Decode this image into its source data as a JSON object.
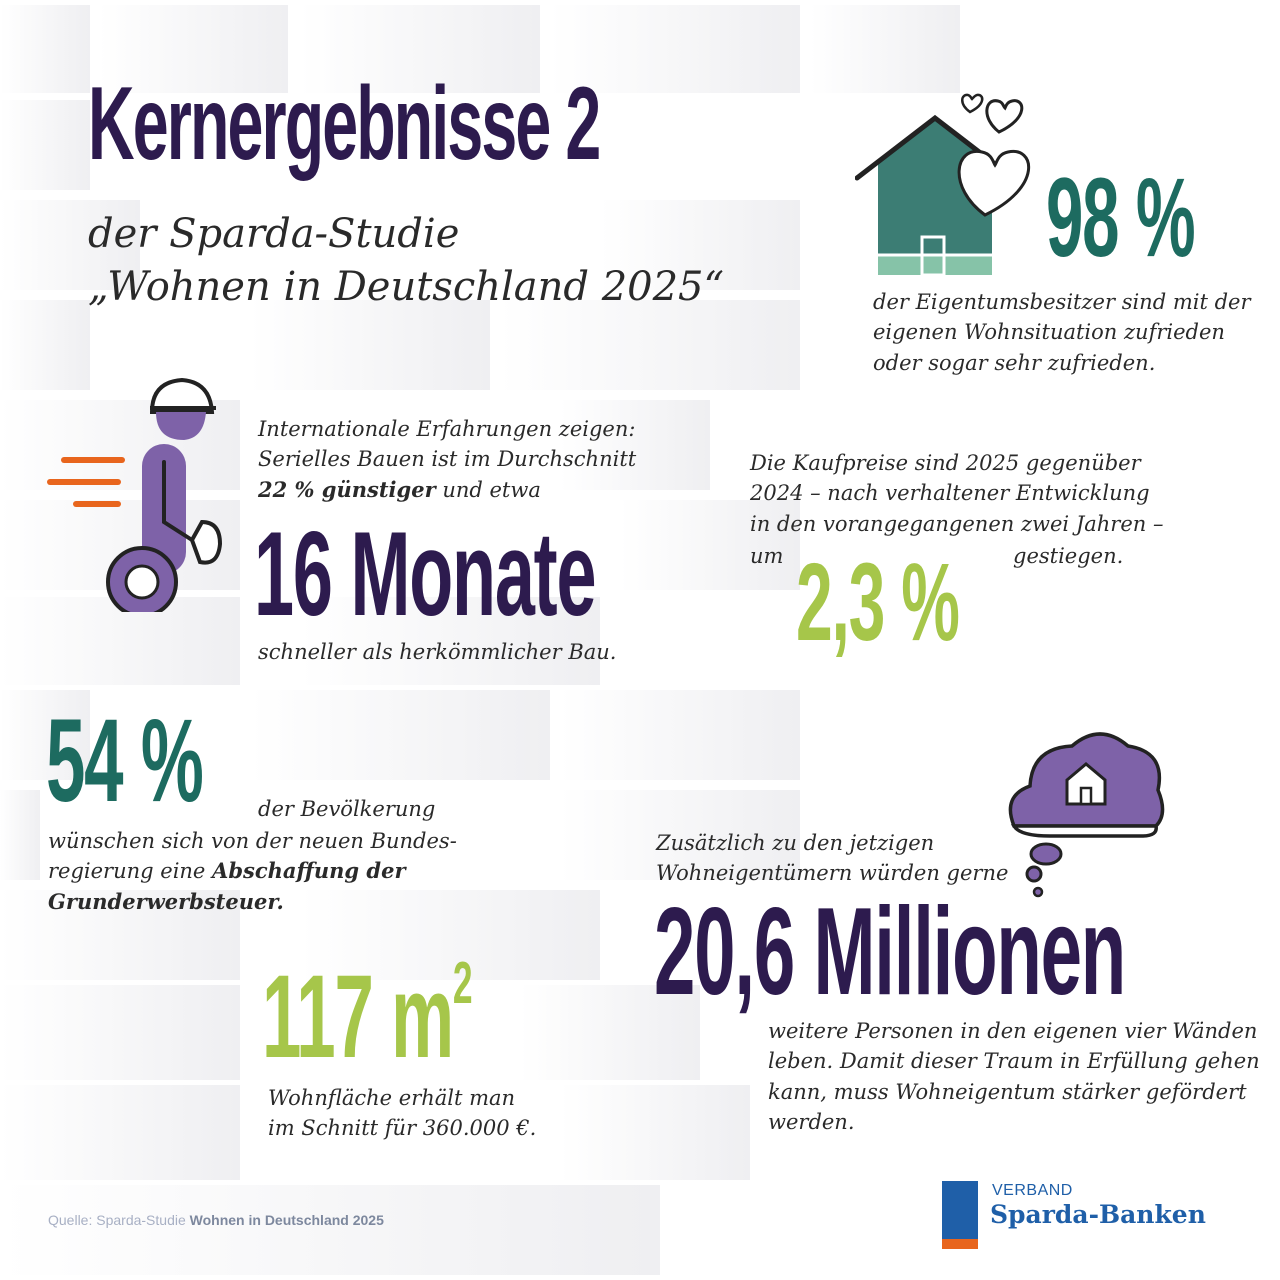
{
  "title": "Kernergebnisse 2",
  "subtitle": {
    "line1": "der Sparda-Studie",
    "line2": "„Wohnen in Deutschland 2025“"
  },
  "stat_satisfaction": {
    "value": "98 %",
    "text": [
      "der Eigentumsbesitzer sind mit der",
      "eigenen Wohnsituation zufrieden",
      "oder sogar sehr zufrieden."
    ]
  },
  "stat_serial": {
    "intro_line1": "Internationale Erfahrungen zeigen:",
    "intro_line2": "Serielles Bauen ist im Durchschnitt",
    "intro_bold": "22 % günstiger",
    "intro_rest": " und etwa",
    "value": "16 Monate",
    "outro": "schneller als herkömmlicher Bau."
  },
  "stat_prices": {
    "text": [
      "Die Kaufpreise sind 2025 gegenüber",
      "2024 – nach verhaltener Entwicklung",
      "in den vorangegangenen zwei Jahren –"
    ],
    "prefix": "um",
    "value": "2,3 %",
    "suffix": "gestiegen."
  },
  "stat_tax": {
    "value": "54 %",
    "label": "der Bevölkerung",
    "line2": "wünschen sich von der neuen Bundes-",
    "line3_plain": "regierung eine ",
    "line3_bold": "Abschaffung der",
    "line4_bold": "Grunderwerbsteuer."
  },
  "stat_area": {
    "value": "117 m",
    "superscript": "2",
    "text": [
      "Wohnfläche erhält man",
      "im Schnitt für 360.000 €."
    ]
  },
  "stat_owners": {
    "intro": [
      "Zusätzlich zu den jetzigen",
      "Wohneigentümern würden gerne"
    ],
    "value": "20,6 Millionen",
    "text": [
      "weitere Personen in den eigenen vier Wänden",
      "leben. Damit dieser Traum in Erfüllung gehen",
      "kann, muss Wohneigentum stärker gefördert",
      "werden."
    ]
  },
  "source": {
    "prefix": "Quelle: Sparda-Studie ",
    "bold": "Wohnen in Deutschland 2025"
  },
  "logo": {
    "line1": "VERBAND",
    "line2": "Sparda-Banken"
  },
  "colors": {
    "purple": "#2d1b4e",
    "teal": "#1d6b60",
    "lime": "#a6c64a",
    "violet": "#7e62a8",
    "orange": "#e8651d",
    "blue": "#1f5fa8"
  },
  "icons": [
    "house-hearts-icon",
    "construction-worker-icon",
    "thought-cloud-house-icon"
  ]
}
